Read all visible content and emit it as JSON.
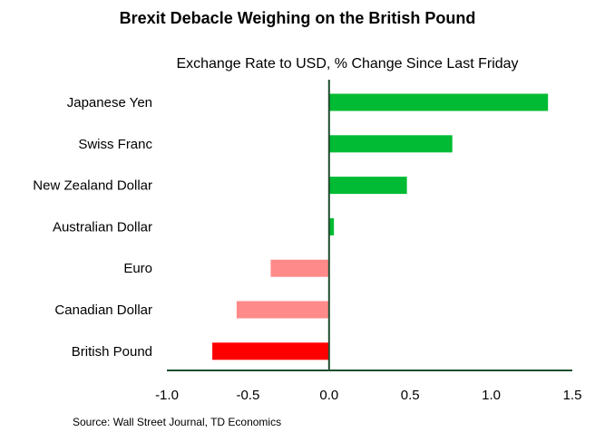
{
  "chart_data": {
    "type": "bar",
    "orientation": "horizontal",
    "title": "Brexit Debacle Weighing on the British Pound",
    "subtitle": "Exchange Rate to USD, % Change Since Last Friday",
    "categories": [
      "Japanese Yen",
      "Swiss Franc",
      "New Zealand Dollar",
      "Australian Dollar",
      "Euro",
      "Canadian Dollar",
      "British Pound"
    ],
    "values": [
      1.35,
      0.76,
      0.48,
      0.03,
      -0.36,
      -0.57,
      -0.72
    ],
    "colors": [
      "#00bb33",
      "#00bb33",
      "#00bb33",
      "#00bb33",
      "#ff8a8a",
      "#ff8a8a",
      "#ff0000"
    ],
    "xlim": [
      -1.0,
      1.5
    ],
    "xticks": [
      "-1.0",
      "-0.5",
      "0.0",
      "0.5",
      "1.0",
      "1.5"
    ],
    "axis_color": "#1f4d2e",
    "grid": false,
    "legend": "none",
    "source": "Source: Wall Street Journal, TD Economics"
  }
}
